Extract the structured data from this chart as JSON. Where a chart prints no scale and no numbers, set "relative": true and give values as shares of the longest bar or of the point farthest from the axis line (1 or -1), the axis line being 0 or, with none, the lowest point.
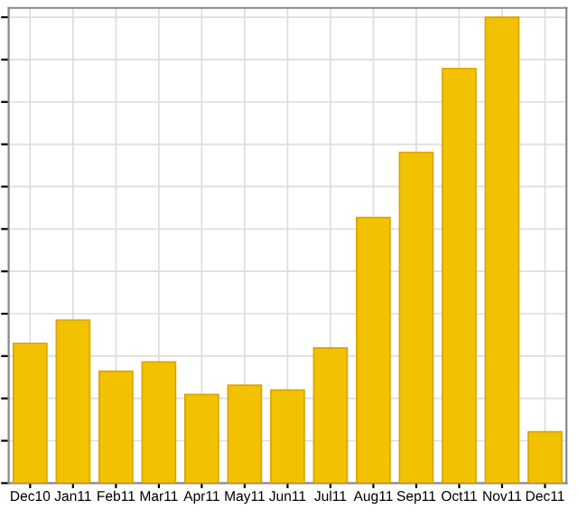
{
  "chart_data": {
    "type": "bar",
    "relative": true,
    "categories": [
      "Dec10",
      "Jan11",
      "Feb11",
      "Mar11",
      "Apr11",
      "May11",
      "Jun11",
      "Jul11",
      "Aug11",
      "Sep11",
      "Oct11",
      "Nov11",
      "Dec11"
    ],
    "values": [
      0.3,
      0.35,
      0.24,
      0.26,
      0.19,
      0.21,
      0.2,
      0.29,
      0.57,
      0.71,
      0.89,
      1,
      0.11
    ],
    "color": "#f2c200",
    "grid": true
  }
}
